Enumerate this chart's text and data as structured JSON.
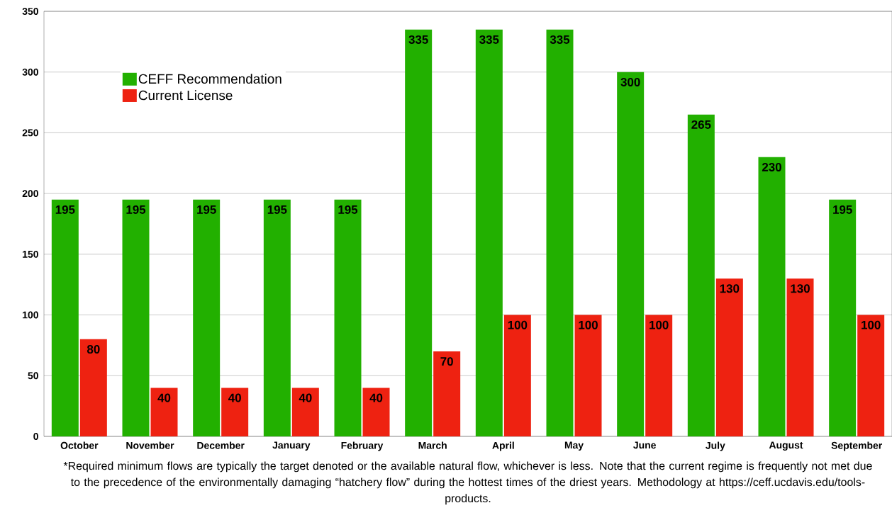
{
  "chart_data": {
    "type": "bar",
    "categories": [
      "October",
      "November",
      "December",
      "January",
      "February",
      "March",
      "April",
      "May",
      "June",
      "July",
      "August",
      "September"
    ],
    "series": [
      {
        "name": "CEFF Recommendation",
        "color": "#22b000",
        "values": [
          195,
          195,
          195,
          195,
          195,
          335,
          335,
          335,
          300,
          265,
          230,
          195
        ]
      },
      {
        "name": "Current License",
        "color": "#ee2211",
        "values": [
          80,
          40,
          40,
          40,
          40,
          70,
          100,
          100,
          100,
          130,
          130,
          100
        ]
      }
    ],
    "ylim": [
      0,
      350
    ],
    "yticks": [
      0,
      50,
      100,
      150,
      200,
      250,
      300,
      350
    ],
    "grid": "y",
    "legend": "top left",
    "data_labels": true,
    "annotations": [
      "*Required minimum flows are typically the target denoted or the available natural flow, whichever is less. Note that the current regime is frequently not met due to the precedence of the environmentally damaging “hatchery flow” during the hottest times of the driest years. Methodology at https://ceff.ucdavis.edu/tools-products."
    ]
  }
}
